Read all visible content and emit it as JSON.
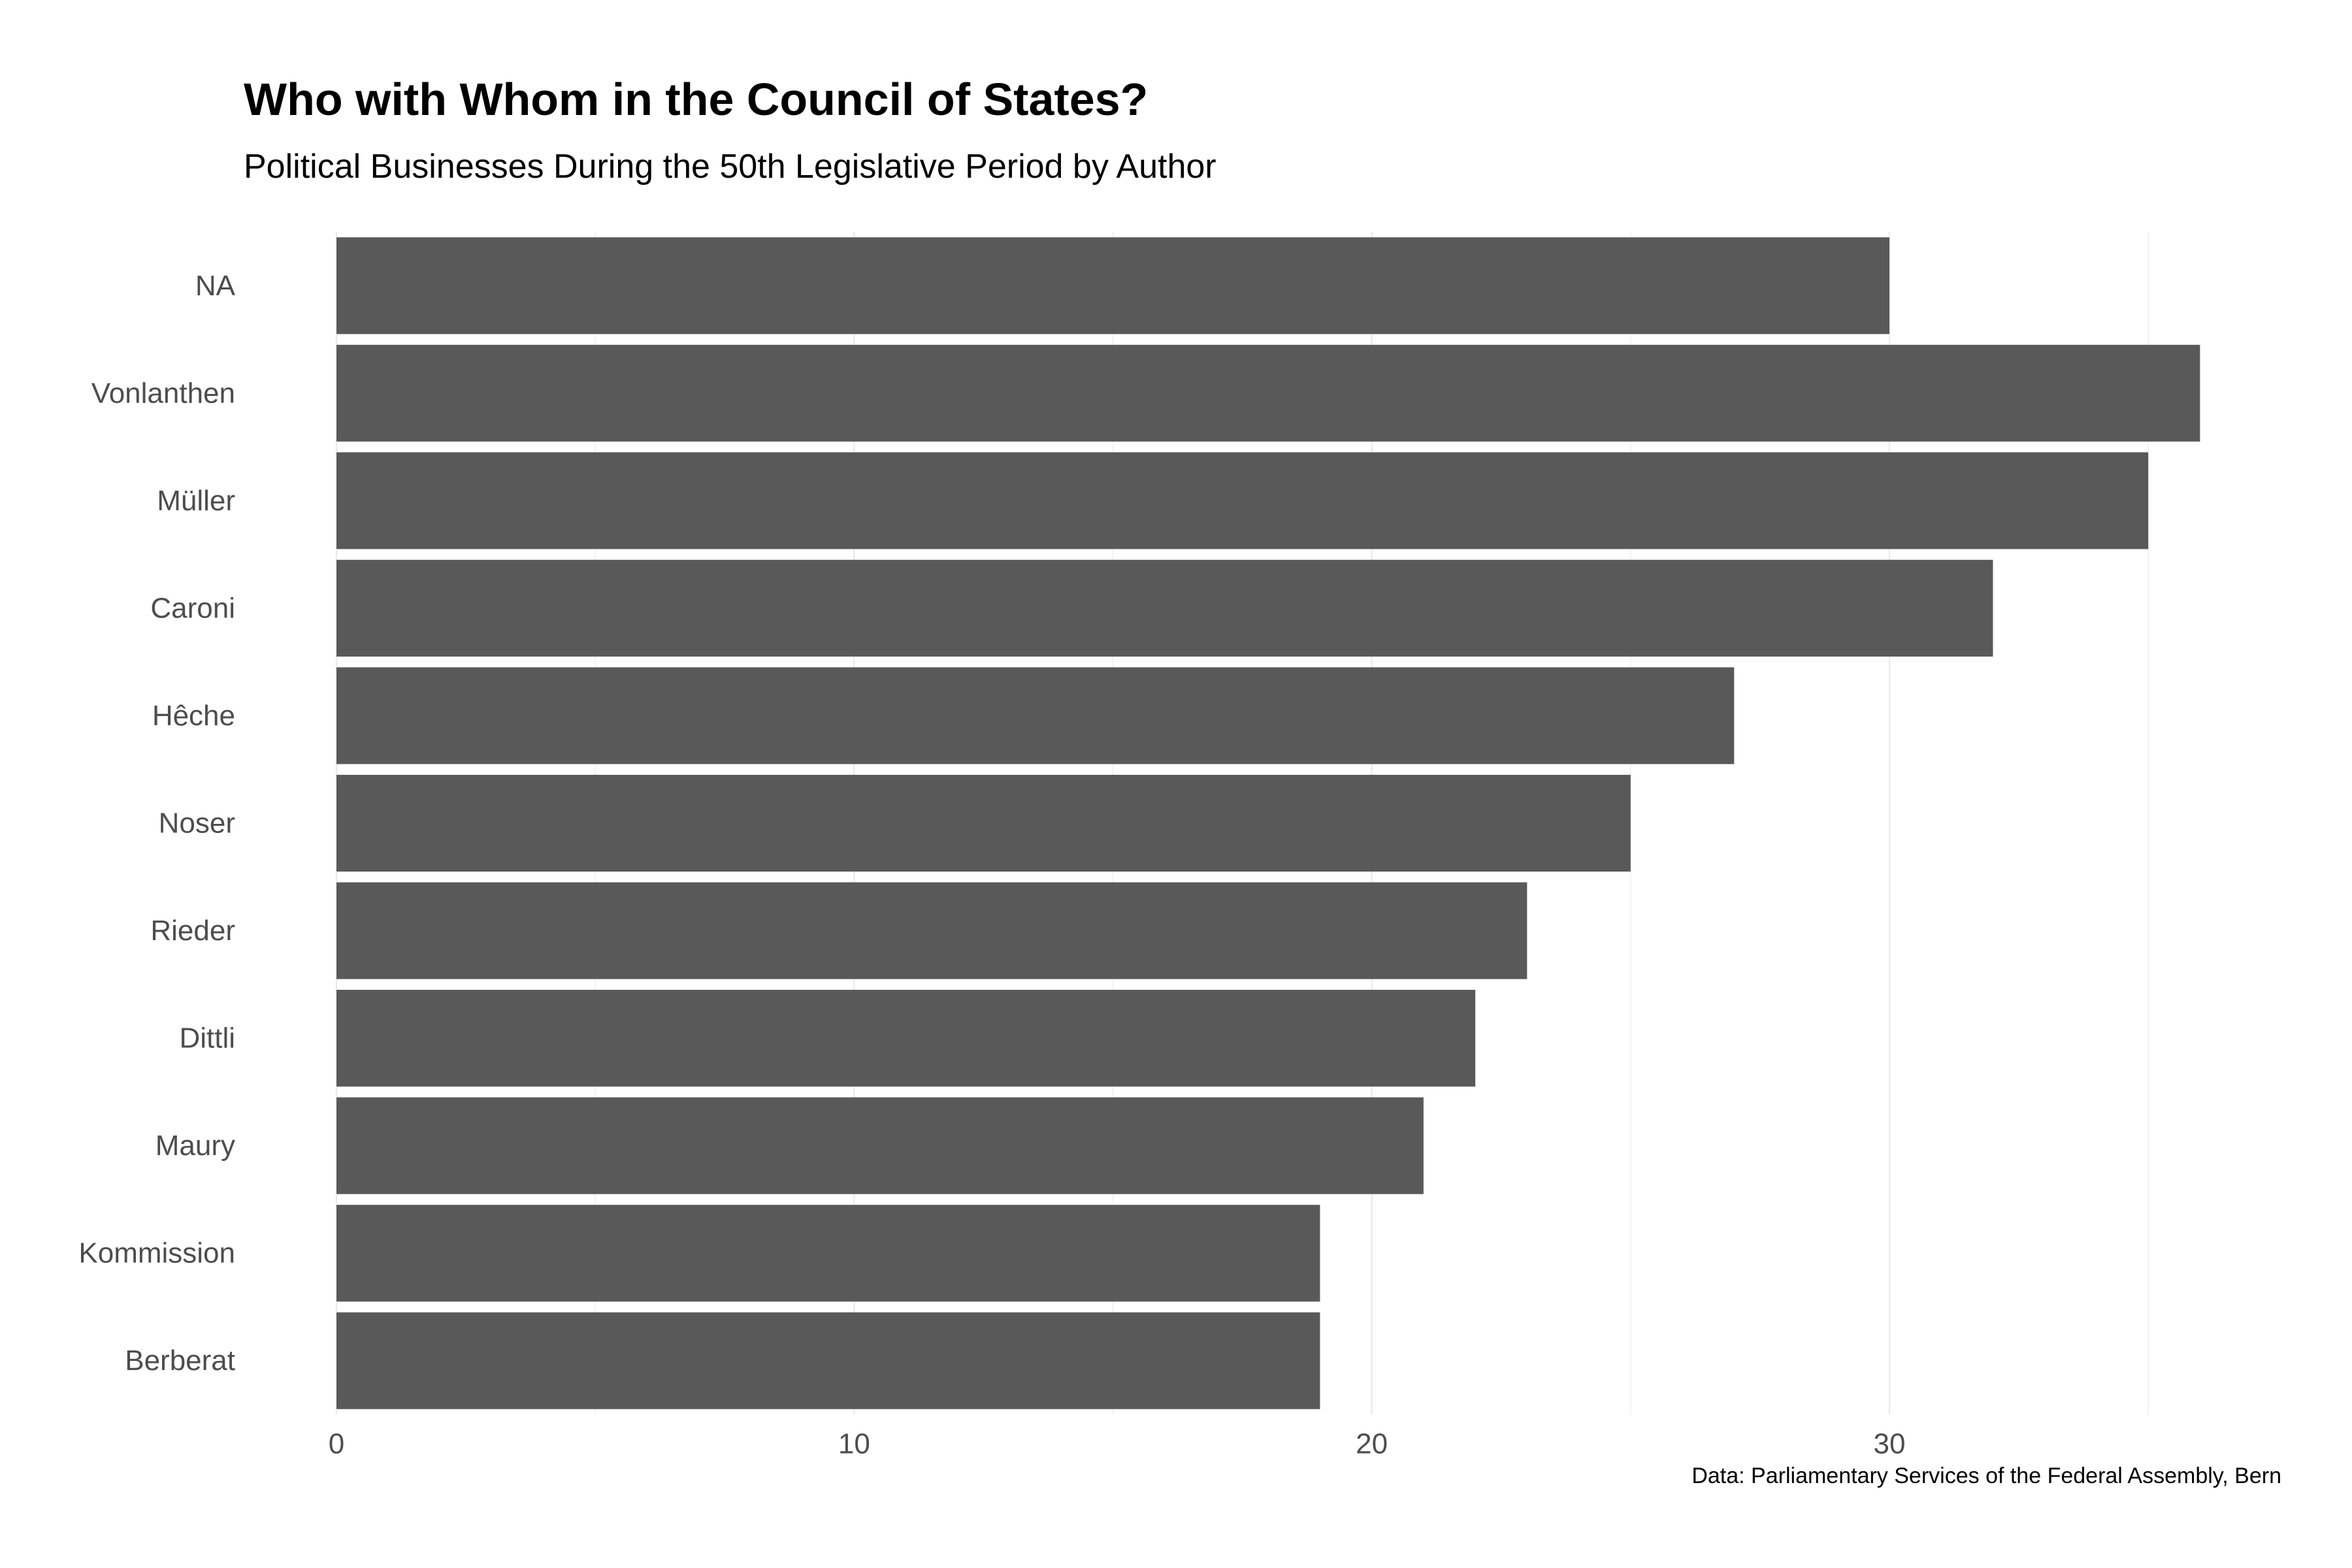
{
  "chart": {
    "title": "Who with Whom in the Council of States?",
    "subtitle": "Political Businesses During the 50th Legislative Period by Author",
    "caption": "Data: Parliamentary Services of the Federal Assembly, Bern"
  },
  "chart_data": {
    "type": "bar",
    "orientation": "horizontal",
    "title": "Who with Whom in the Council of States?",
    "subtitle": "Political Businesses During the 50th Legislative Period by Author",
    "caption": "Data: Parliamentary Services of the Federal Assembly, Bern",
    "xlabel": "",
    "ylabel": "",
    "categories": [
      "NA",
      "Vonlanthen",
      "Müller",
      "Caroni",
      "Hêche",
      "Noser",
      "Rieder",
      "Dittli",
      "Maury",
      "Kommission",
      "Berberat"
    ],
    "values": [
      30,
      36,
      35,
      32,
      27,
      25,
      23,
      22,
      21,
      19,
      19
    ],
    "xlim": [
      0,
      37.8
    ],
    "xticks": [
      0,
      10,
      20,
      30
    ],
    "grid": true,
    "legend": "none",
    "colors": {
      "bar": "#595959",
      "grid": "#ebebeb",
      "tick_label": "#4d4d4d"
    }
  }
}
